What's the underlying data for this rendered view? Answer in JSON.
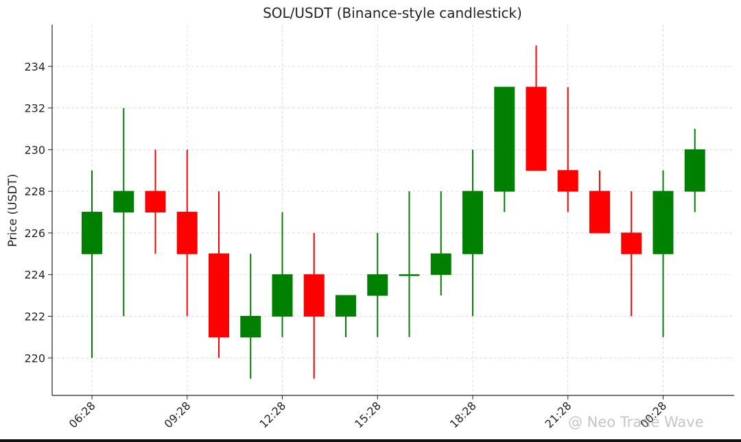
{
  "chart_data": {
    "type": "candlestick",
    "title": "SOL/USDT (Binance-style candlestick)",
    "ylabel": "Price (USDT)",
    "xlabel": "",
    "ylim": [
      218.2,
      236.0
    ],
    "yticks": [
      220,
      222,
      224,
      226,
      228,
      230,
      232,
      234
    ],
    "x_tick_labels": [
      "06:28",
      "09:28",
      "12:28",
      "15:28",
      "18:28",
      "21:28",
      "00:28"
    ],
    "x_tick_candle_index": [
      0,
      3,
      6,
      9,
      12,
      15,
      18
    ],
    "grid": true,
    "up_color": "#008000",
    "down_color": "#ff0000",
    "candles": [
      {
        "open": 225,
        "high": 229,
        "low": 220,
        "close": 227
      },
      {
        "open": 227,
        "high": 232,
        "low": 222,
        "close": 228
      },
      {
        "open": 228,
        "high": 230,
        "low": 225,
        "close": 227
      },
      {
        "open": 227,
        "high": 230,
        "low": 222,
        "close": 225
      },
      {
        "open": 225,
        "high": 228,
        "low": 220,
        "close": 221
      },
      {
        "open": 221,
        "high": 225,
        "low": 219,
        "close": 222
      },
      {
        "open": 222,
        "high": 227,
        "low": 221,
        "close": 224
      },
      {
        "open": 224,
        "high": 226,
        "low": 219,
        "close": 222
      },
      {
        "open": 222,
        "high": 223,
        "low": 221,
        "close": 223
      },
      {
        "open": 223,
        "high": 226,
        "low": 221,
        "close": 224
      },
      {
        "open": 224,
        "high": 228,
        "low": 221,
        "close": 224
      },
      {
        "open": 224,
        "high": 228,
        "low": 223,
        "close": 225
      },
      {
        "open": 225,
        "high": 230,
        "low": 222,
        "close": 228
      },
      {
        "open": 228,
        "high": 233,
        "low": 227,
        "close": 233
      },
      {
        "open": 233,
        "high": 235,
        "low": 229,
        "close": 229
      },
      {
        "open": 229,
        "high": 233,
        "low": 227,
        "close": 228
      },
      {
        "open": 228,
        "high": 229,
        "low": 226,
        "close": 226
      },
      {
        "open": 226,
        "high": 228,
        "low": 222,
        "close": 225
      },
      {
        "open": 225,
        "high": 229,
        "low": 221,
        "close": 228
      },
      {
        "open": 228,
        "high": 231,
        "low": 227,
        "close": 230
      }
    ]
  },
  "watermark": "@ Neo Trade Wave"
}
